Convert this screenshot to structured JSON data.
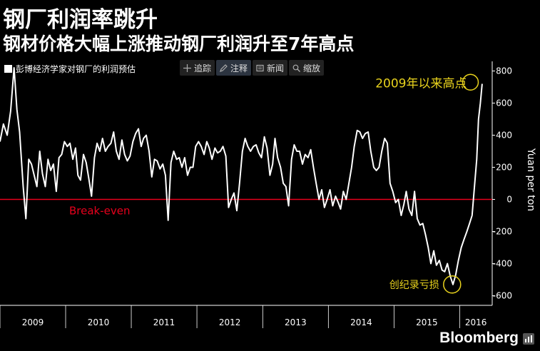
{
  "header": {
    "title": "钢厂利润率跳升",
    "subtitle": "钢材价格大幅上涨推动钢厂利润升至7年高点"
  },
  "toolbar": {
    "items": [
      {
        "label": "追踪",
        "icon": "crosshair-icon"
      },
      {
        "label": "注释",
        "icon": "pencil-icon"
      },
      {
        "label": "新闻",
        "icon": "news-icon"
      },
      {
        "label": "缩放",
        "icon": "zoom-icon"
      }
    ]
  },
  "brand": {
    "name": "Bloomberg",
    "icon": "bar-chart-icon"
  },
  "colors": {
    "line": "#ffffff",
    "zero_line": "#e8001c",
    "annotation": "#e8d21d",
    "background": "#000000",
    "axis": "#ffffff"
  },
  "chart_data": {
    "type": "line",
    "title": "",
    "legend": [
      {
        "name": "彭博经济学家对钢厂的利润预估",
        "placement": "top-left"
      }
    ],
    "ylabel": "Yuan per ton",
    "yaxis_side": "right",
    "ylim": [
      -660,
      860
    ],
    "yticks": [
      -600,
      -400,
      -200,
      0,
      200,
      400,
      600,
      800
    ],
    "xlim": [
      "2009-01-01",
      "2016-06-30"
    ],
    "xticks": [
      "2009",
      "2010",
      "2011",
      "2012",
      "2013",
      "2014",
      "2015",
      "2016"
    ],
    "grid": false,
    "reference_lines": [
      {
        "y": 0,
        "label": "Break-even"
      }
    ],
    "annotations": [
      {
        "text": "2009年以来高点",
        "x": "2016-03-01",
        "y": 730
      },
      {
        "text": "创纪录亏损",
        "x": "2015-11-20",
        "y": -530
      }
    ],
    "series": [
      {
        "name": "彭博经济学家对钢厂的利润预估",
        "x": [
          "2009-01-01",
          "2009-01-20",
          "2009-02-10",
          "2009-03-01",
          "2009-03-20",
          "2009-04-05",
          "2009-04-20",
          "2009-05-10",
          "2009-05-25",
          "2009-06-10",
          "2009-06-25",
          "2009-07-10",
          "2009-07-25",
          "2009-08-10",
          "2009-08-25",
          "2009-09-10",
          "2009-09-25",
          "2009-10-10",
          "2009-10-25",
          "2009-11-10",
          "2009-11-25",
          "2009-12-10",
          "2009-12-25",
          "2010-01-10",
          "2010-01-25",
          "2010-02-10",
          "2010-02-25",
          "2010-03-10",
          "2010-03-25",
          "2010-04-10",
          "2010-04-25",
          "2010-05-10",
          "2010-05-25",
          "2010-06-10",
          "2010-06-25",
          "2010-07-10",
          "2010-07-25",
          "2010-08-10",
          "2010-08-25",
          "2010-09-10",
          "2010-09-25",
          "2010-10-10",
          "2010-10-25",
          "2010-11-10",
          "2010-11-25",
          "2010-12-10",
          "2010-12-25",
          "2011-01-10",
          "2011-01-25",
          "2011-02-10",
          "2011-02-25",
          "2011-03-10",
          "2011-03-25",
          "2011-04-10",
          "2011-04-25",
          "2011-05-10",
          "2011-05-25",
          "2011-06-10",
          "2011-06-25",
          "2011-07-10",
          "2011-07-25",
          "2011-08-10",
          "2011-08-25",
          "2011-09-10",
          "2011-09-25",
          "2011-10-10",
          "2011-10-25",
          "2011-11-10",
          "2011-11-25",
          "2011-12-10",
          "2011-12-25",
          "2012-01-10",
          "2012-01-25",
          "2012-02-10",
          "2012-02-25",
          "2012-03-10",
          "2012-03-25",
          "2012-04-10",
          "2012-04-25",
          "2012-05-10",
          "2012-05-25",
          "2012-06-10",
          "2012-06-25",
          "2012-07-10",
          "2012-07-25",
          "2012-08-10",
          "2012-08-25",
          "2012-09-10",
          "2012-09-25",
          "2012-10-10",
          "2012-10-25",
          "2012-11-10",
          "2012-11-25",
          "2012-12-10",
          "2012-12-25",
          "2013-01-10",
          "2013-01-25",
          "2013-02-10",
          "2013-02-25",
          "2013-03-10",
          "2013-03-25",
          "2013-04-10",
          "2013-04-25",
          "2013-05-10",
          "2013-05-25",
          "2013-06-10",
          "2013-06-25",
          "2013-07-10",
          "2013-07-25",
          "2013-08-10",
          "2013-08-25",
          "2013-09-10",
          "2013-09-25",
          "2013-10-10",
          "2013-10-25",
          "2013-11-10",
          "2013-11-25",
          "2013-12-10",
          "2013-12-25",
          "2014-01-10",
          "2014-01-25",
          "2014-02-10",
          "2014-02-25",
          "2014-03-10",
          "2014-03-25",
          "2014-04-10",
          "2014-04-25",
          "2014-05-10",
          "2014-05-25",
          "2014-06-10",
          "2014-06-25",
          "2014-07-10",
          "2014-07-25",
          "2014-08-10",
          "2014-08-25",
          "2014-09-10",
          "2014-09-25",
          "2014-10-10",
          "2014-10-25",
          "2014-11-10",
          "2014-11-25",
          "2014-12-10",
          "2014-12-25",
          "2015-01-10",
          "2015-01-25",
          "2015-02-10",
          "2015-02-25",
          "2015-03-10",
          "2015-03-25",
          "2015-04-10",
          "2015-04-25",
          "2015-05-10",
          "2015-05-25",
          "2015-06-10",
          "2015-06-25",
          "2015-07-10",
          "2015-07-25",
          "2015-08-10",
          "2015-08-25",
          "2015-09-10",
          "2015-09-25",
          "2015-10-10",
          "2015-10-25",
          "2015-11-10",
          "2015-11-25",
          "2015-12-10",
          "2015-12-25",
          "2016-01-10",
          "2016-01-25",
          "2016-02-10",
          "2016-02-25",
          "2016-03-10",
          "2016-03-25",
          "2016-04-05",
          "2016-04-15",
          "2016-04-25",
          "2016-05-05"
        ],
        "values": [
          360,
          470,
          400,
          550,
          820,
          560,
          420,
          80,
          -120,
          250,
          220,
          150,
          80,
          300,
          160,
          80,
          250,
          180,
          220,
          50,
          260,
          280,
          360,
          330,
          350,
          250,
          320,
          150,
          120,
          280,
          230,
          130,
          20,
          260,
          350,
          300,
          380,
          300,
          330,
          350,
          420,
          300,
          250,
          370,
          280,
          240,
          270,
          360,
          410,
          440,
          330,
          380,
          400,
          300,
          140,
          250,
          240,
          190,
          220,
          150,
          -130,
          230,
          300,
          250,
          260,
          200,
          260,
          150,
          200,
          200,
          330,
          360,
          330,
          280,
          360,
          320,
          250,
          320,
          290,
          300,
          330,
          270,
          -50,
          0,
          40,
          -70,
          100,
          300,
          380,
          330,
          300,
          330,
          340,
          290,
          260,
          390,
          320,
          150,
          220,
          380,
          260,
          200,
          100,
          80,
          -40,
          250,
          340,
          300,
          300,
          220,
          280,
          260,
          310,
          200,
          100,
          0,
          60,
          -50,
          0,
          60,
          -40,
          20,
          -20,
          -60,
          50,
          0,
          100,
          200,
          330,
          430,
          420,
          380,
          410,
          420,
          300,
          200,
          180,
          200,
          300,
          380,
          350,
          100,
          50,
          -20,
          0,
          -100,
          -30,
          50,
          -60,
          -100,
          50,
          -120,
          -160,
          -150,
          -220,
          -300,
          -400,
          -320,
          -410,
          -380,
          -440,
          -450,
          -400,
          -480,
          -530,
          -470,
          -380,
          -300,
          -250,
          -200,
          -150,
          -100,
          100,
          250,
          500,
          600,
          720
        ]
      }
    ]
  }
}
